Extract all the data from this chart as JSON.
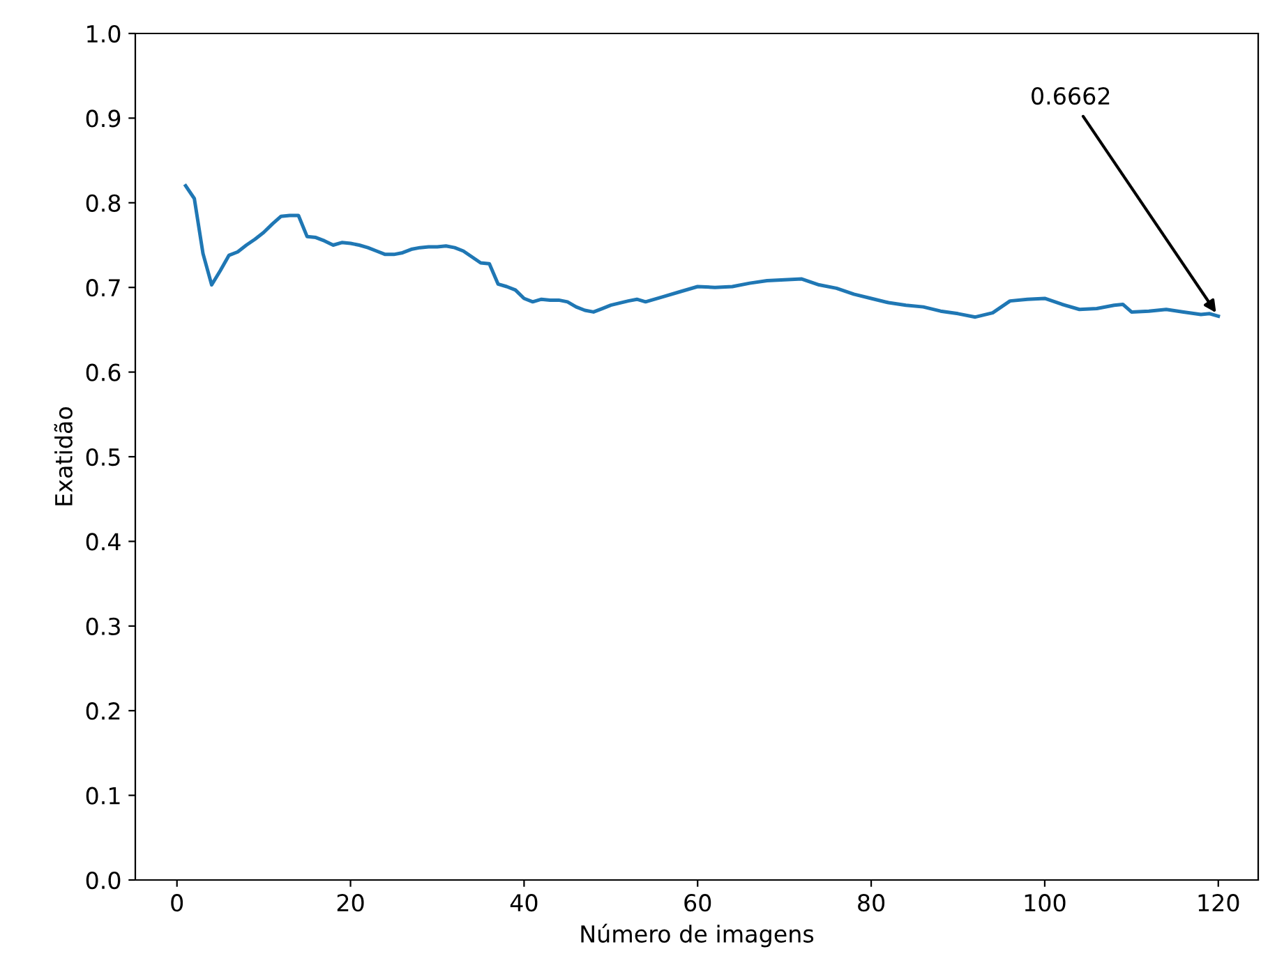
{
  "chart_data": {
    "type": "line",
    "xlabel": "Número de imagens",
    "ylabel": "Exatidão",
    "x": [
      1,
      2,
      3,
      4,
      5,
      6,
      7,
      8,
      9,
      10,
      11,
      12,
      13,
      14,
      15,
      16,
      17,
      18,
      19,
      20,
      21,
      22,
      23,
      24,
      25,
      26,
      27,
      28,
      29,
      30,
      31,
      32,
      33,
      34,
      35,
      36,
      37,
      38,
      39,
      40,
      41,
      42,
      43,
      44,
      45,
      46,
      47,
      48,
      49,
      50,
      52,
      53,
      54,
      56,
      58,
      60,
      62,
      64,
      66,
      68,
      70,
      72,
      74,
      76,
      78,
      80,
      82,
      84,
      86,
      88,
      90,
      92,
      94,
      96,
      98,
      100,
      102,
      104,
      106,
      108,
      109,
      110,
      112,
      114,
      116,
      118,
      119,
      120
    ],
    "series": [
      {
        "color": "#1f77b4",
        "values": [
          0.82,
          0.805,
          0.74,
          0.703,
          0.72,
          0.738,
          0.742,
          0.75,
          0.757,
          0.765,
          0.775,
          0.784,
          0.785,
          0.785,
          0.76,
          0.759,
          0.755,
          0.75,
          0.753,
          0.752,
          0.75,
          0.747,
          0.743,
          0.739,
          0.739,
          0.741,
          0.745,
          0.747,
          0.748,
          0.748,
          0.749,
          0.747,
          0.743,
          0.736,
          0.729,
          0.728,
          0.704,
          0.701,
          0.697,
          0.687,
          0.683,
          0.686,
          0.685,
          0.685,
          0.683,
          0.677,
          0.673,
          0.671,
          0.675,
          0.679,
          0.684,
          0.686,
          0.683,
          0.689,
          0.695,
          0.701,
          0.7,
          0.701,
          0.705,
          0.708,
          0.709,
          0.71,
          0.703,
          0.699,
          0.692,
          0.687,
          0.682,
          0.679,
          0.677,
          0.672,
          0.669,
          0.665,
          0.67,
          0.684,
          0.686,
          0.687,
          0.68,
          0.674,
          0.675,
          0.679,
          0.68,
          0.671,
          0.672,
          0.674,
          0.671,
          0.668,
          0.669,
          0.666
        ]
      }
    ],
    "annotations": [
      {
        "text": "0.6662",
        "x": 120,
        "y": 0.6662
      }
    ],
    "xlim": [
      -4.8,
      124.6
    ],
    "ylim": [
      0,
      1
    ],
    "xticks": [
      0,
      20,
      40,
      60,
      80,
      100,
      120
    ],
    "yticks": [
      {
        "value": 0,
        "label": "0.0"
      },
      0.1,
      0.2,
      0.3,
      0.4,
      0.5,
      0.6,
      0.7,
      0.8,
      0.9,
      {
        "value": 1,
        "label": "1.0"
      }
    ],
    "grid": false,
    "legend": false
  }
}
